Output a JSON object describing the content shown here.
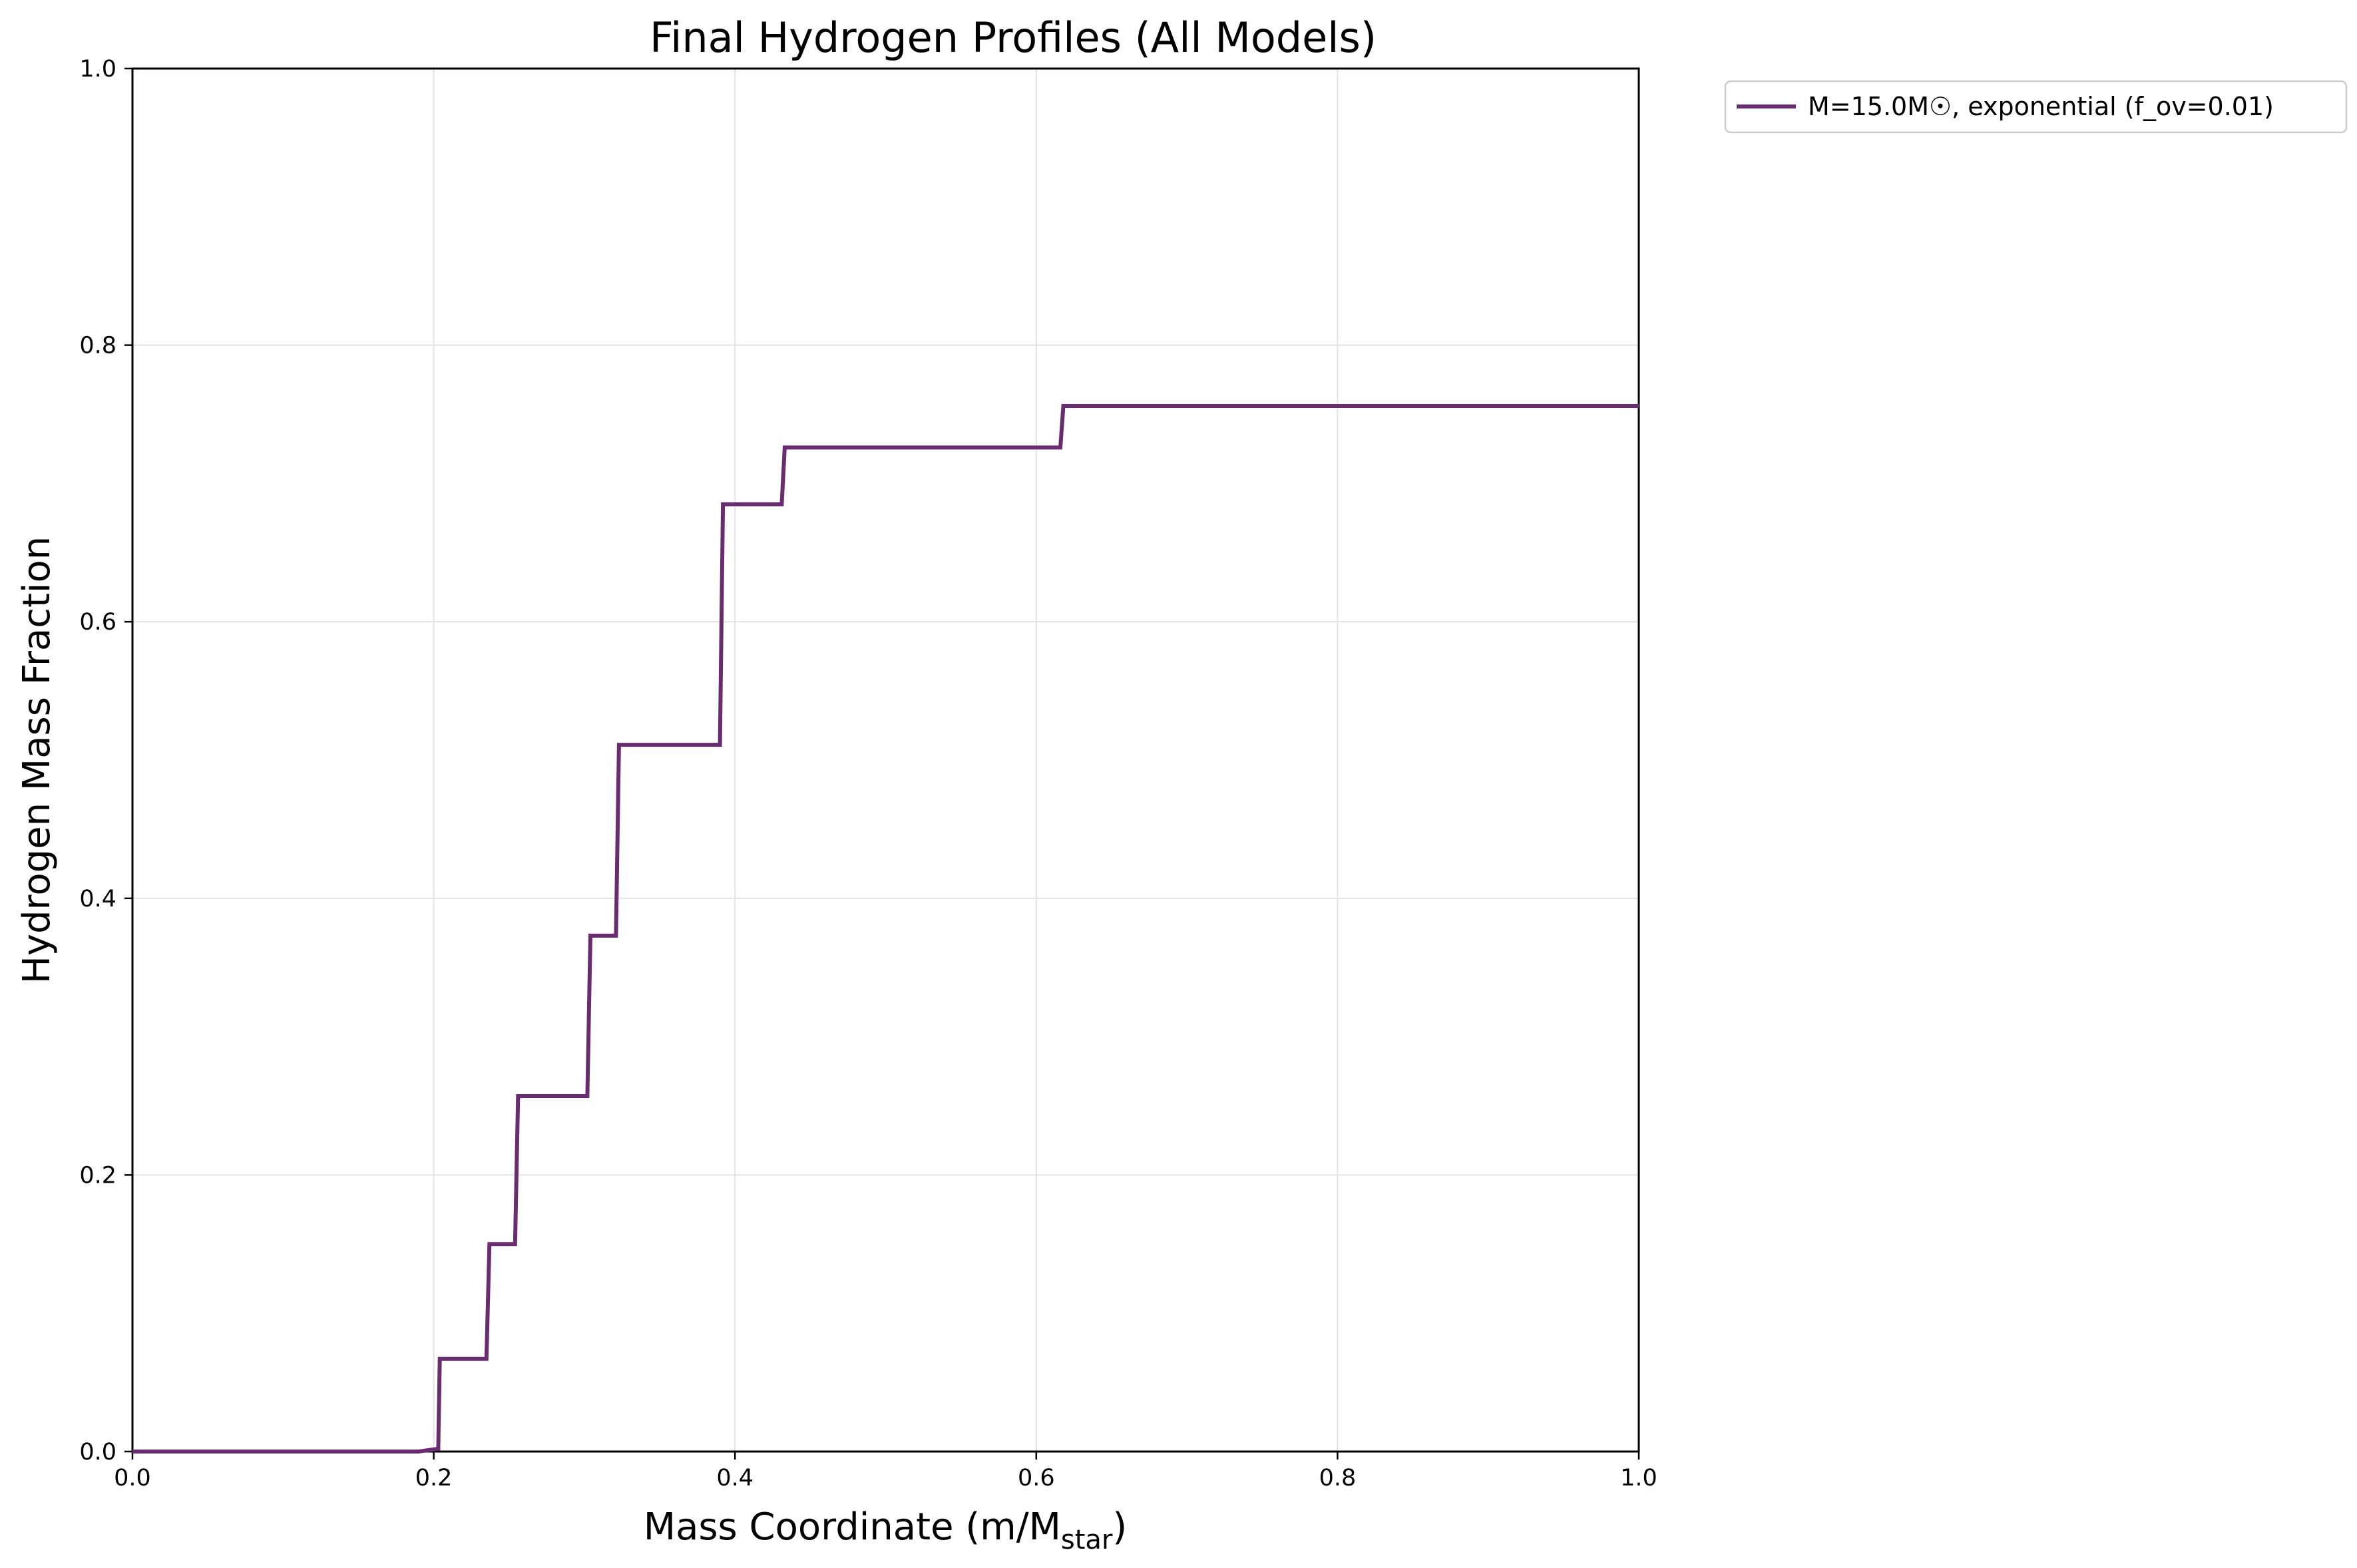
{
  "chart_data": {
    "type": "line",
    "title": "Final Hydrogen Profiles (All Models)",
    "xlabel": "Mass Coordinate (m/M",
    "xlabel_subscript": "star",
    "xlabel_suffix": ")",
    "ylabel": "Hydrogen Mass Fraction",
    "xlim": [
      0.0,
      1.0
    ],
    "ylim": [
      0.0,
      1.0
    ],
    "grid": true,
    "legend_position": "outside top-right",
    "xticks": [
      0.0,
      0.2,
      0.4,
      0.6,
      0.8,
      1.0
    ],
    "yticks": [
      0.0,
      0.2,
      0.4,
      0.6,
      0.8,
      1.0
    ],
    "xtick_labels": [
      "0.0",
      "0.2",
      "0.4",
      "0.6",
      "0.8",
      "1.0"
    ],
    "ytick_labels": [
      "0.0",
      "0.2",
      "0.4",
      "0.6",
      "0.8",
      "1.0"
    ],
    "series": [
      {
        "name": "M=15.0M☉, exponential (f_ov=0.01)",
        "color": "#6a2c70",
        "x": [
          0.0,
          0.19,
          0.203,
          0.204,
          0.205,
          0.235,
          0.237,
          0.254,
          0.256,
          0.302,
          0.304,
          0.321,
          0.323,
          0.39,
          0.392,
          0.431,
          0.433,
          0.616,
          0.618,
          1.0
        ],
        "y": [
          0.0,
          0.0,
          0.002,
          0.067,
          0.067,
          0.067,
          0.15,
          0.15,
          0.257,
          0.257,
          0.373,
          0.373,
          0.511,
          0.511,
          0.685,
          0.685,
          0.726,
          0.726,
          0.756,
          0.756
        ]
      }
    ]
  }
}
